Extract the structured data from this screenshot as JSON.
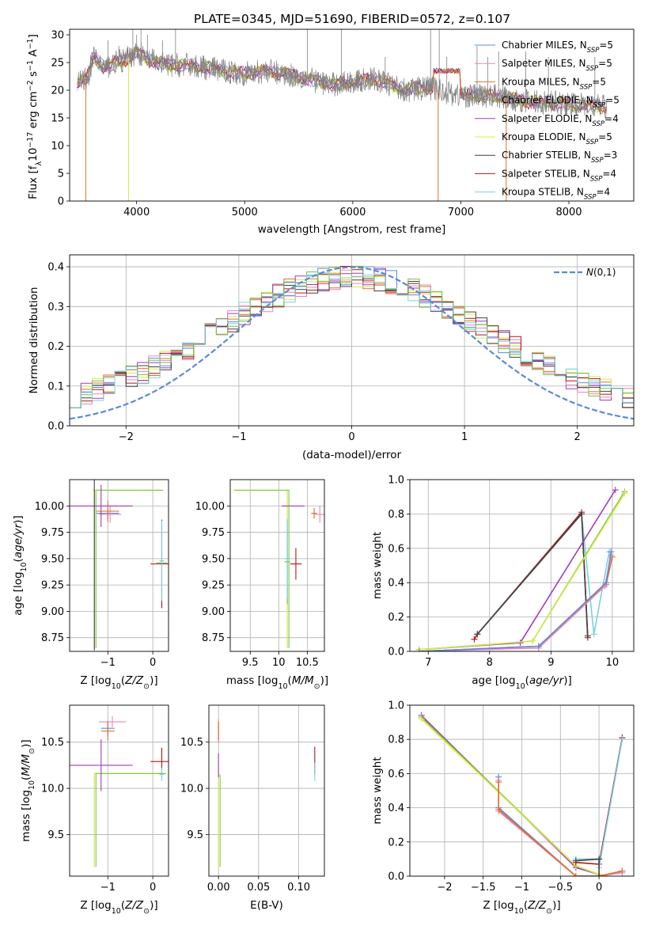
{
  "figure": {
    "title": "PLATE=0345, MJD=51690, FIBERID=0572, z=0.107"
  },
  "series": [
    {
      "key": "chab_miles",
      "legend": "Chabrier MILES, N",
      "sub": "SSP",
      "suffix": "=5",
      "color": "#5b8ad8"
    },
    {
      "key": "salp_miles",
      "legend": "Salpeter MILES, N",
      "sub": "SSP",
      "suffix": "=5",
      "color": "#e886b8"
    },
    {
      "key": "krou_miles",
      "legend": "Kroupa MILES, N",
      "sub": "SSP",
      "suffix": "=5",
      "color": "#e0722a"
    },
    {
      "key": "chab_elodie",
      "legend": "Chabrier ELODIE, N",
      "sub": "SSP",
      "suffix": "=5",
      "color": "#73c23f"
    },
    {
      "key": "salp_elodie",
      "legend": "Salpeter ELODIE, N",
      "sub": "SSP",
      "suffix": "=4",
      "color": "#a23ab8"
    },
    {
      "key": "krou_elodie",
      "legend": "Kroupa ELODIE, N",
      "sub": "SSP",
      "suffix": "=5",
      "color": "#d8e84a"
    },
    {
      "key": "chab_stelib",
      "legend": "Chabrier STELIB, N",
      "sub": "SSP",
      "suffix": "=3",
      "color": "#404040"
    },
    {
      "key": "salp_stelib",
      "legend": "Salpeter STELIB, N",
      "sub": "SSP",
      "suffix": "=4",
      "color": "#b01818"
    },
    {
      "key": "krou_stelib",
      "legend": "Kroupa STELIB, N",
      "sub": "SSP",
      "suffix": "=4",
      "color": "#7dd0de"
    }
  ],
  "chart_data": [
    {
      "id": "spectrum",
      "type": "line",
      "xlabel": "wavelength [Angstrom, rest frame]",
      "ylabel": "Flux [f_λ 10^-17 erg cm^-2 s^-1 A^-1]",
      "ylabel_parts": {
        "main": "Flux [f",
        "lam": "λ",
        "mid": "10",
        "e1": "−17",
        "mid2": " erg cm",
        "e2": "−2",
        "mid3": " s",
        "e3": "−1",
        "end": " A",
        "e4": "−1",
        "close": "]"
      },
      "xlim": [
        3380,
        8600
      ],
      "ylim": [
        0,
        31
      ],
      "xticks": [
        4000,
        5000,
        6000,
        7000,
        8000
      ],
      "yticks": [
        0,
        5,
        10,
        15,
        20,
        25,
        30
      ],
      "data_color": "#808080",
      "data_anchors": [
        [
          3450,
          21
        ],
        [
          3550,
          22.5
        ],
        [
          3600,
          26
        ],
        [
          3700,
          24
        ],
        [
          3800,
          25
        ],
        [
          3900,
          25.5
        ],
        [
          4000,
          27
        ],
        [
          4100,
          25.5
        ],
        [
          4300,
          24.5
        ],
        [
          4500,
          24.5
        ],
        [
          4800,
          23.5
        ],
        [
          5000,
          23
        ],
        [
          5200,
          23.5
        ],
        [
          5500,
          22.5
        ],
        [
          5800,
          21
        ],
        [
          6000,
          21.5
        ],
        [
          6200,
          22
        ],
        [
          6500,
          20
        ],
        [
          6700,
          20.5
        ],
        [
          7000,
          19
        ],
        [
          7300,
          19
        ],
        [
          7600,
          18
        ],
        [
          8000,
          17.5
        ],
        [
          8350,
          17
        ]
      ],
      "sky_lines": [
        [
          3735,
          29
        ],
        [
          3835,
          28
        ],
        [
          3965,
          31
        ],
        [
          4000,
          30
        ],
        [
          4040,
          31
        ],
        [
          4100,
          30
        ],
        [
          4240,
          29
        ],
        [
          4360,
          31
        ],
        [
          5580,
          31
        ],
        [
          5895,
          31
        ],
        [
          6300,
          26
        ],
        [
          6720,
          31
        ],
        [
          6800,
          31
        ],
        [
          6870,
          26
        ],
        [
          7150,
          28
        ],
        [
          7250,
          26
        ],
        [
          7350,
          27
        ],
        [
          7600,
          27
        ],
        [
          7810,
          26
        ],
        [
          8240,
          26
        ]
      ],
      "gap_lines": [
        [
          3530,
          0
        ],
        [
          3925,
          0
        ],
        [
          6790,
          0
        ],
        [
          7420,
          0
        ]
      ],
      "model_bump": [
        6740,
        6990,
        23.5
      ]
    },
    {
      "id": "residuals",
      "type": "histogram",
      "xlabel": "(data-model)/error",
      "ylabel": "Normed distribution",
      "xlim": [
        -2.5,
        2.5
      ],
      "ylim": [
        0,
        0.43
      ],
      "xticks": [
        -2,
        -1,
        0,
        1,
        2
      ],
      "yticks": [
        0,
        0.1,
        0.2,
        0.3,
        0.4
      ],
      "normal_label": "N(0,1)",
      "normal_color": "#5b8ad8",
      "bin_width": 0.1
    },
    {
      "id": "age_vs_Z",
      "type": "errorbar",
      "xlabel": "Z [log10(Z/Z⊙)]",
      "ylabel": "age  [log10(age/yr)]",
      "xlim": [
        -1.85,
        0.35
      ],
      "ylim": [
        8.62,
        10.25
      ],
      "xticks": [
        -1,
        0
      ],
      "yticks": [
        8.75,
        9.0,
        9.25,
        9.5,
        9.75,
        10.0
      ],
      "points": [
        {
          "s": "chab_miles",
          "x": -1.0,
          "y": 9.93,
          "dx": 0.25,
          "dy": 0.05
        },
        {
          "s": "salp_miles",
          "x": -0.95,
          "y": 9.92,
          "dx": 0.25,
          "dy": 0.08
        },
        {
          "s": "krou_miles",
          "x": -1.0,
          "y": 9.95,
          "dx": 0.25,
          "dy": 0.1
        },
        {
          "s": "chab_elodie",
          "x": 0.2,
          "y": 9.46,
          "dx": 0.12,
          "dy": 0.03
        },
        {
          "s": "salp_elodie",
          "x": -1.15,
          "y": 10.0,
          "dx": 0.7,
          "dy": 0.2
        },
        {
          "s": "krou_elodie",
          "x": -1.3,
          "y": 10.15,
          "dx": 0.05,
          "dy": 0.0
        },
        {
          "s": "chab_stelib",
          "x": -1.3,
          "y": 10.15,
          "dx": 0.0,
          "dy": 1.52
        },
        {
          "s": "salp_stelib",
          "x": 0.2,
          "y": 9.45,
          "dx": 0.25,
          "dy": 0.42
        },
        {
          "s": "krou_stelib",
          "x": 0.2,
          "y": 9.48,
          "dx": 0.05,
          "dy": 0.38
        }
      ],
      "green_line": {
        "x": -1.3,
        "y0": 8.65,
        "y1": 10.15,
        "x1": 0.2
      }
    },
    {
      "id": "age_vs_mass",
      "type": "errorbar",
      "xlabel": "mass [log10(M/M⊙)]",
      "ylabel": "",
      "xlim": [
        9.15,
        10.8
      ],
      "ylim": [
        8.62,
        10.25
      ],
      "xticks": [
        9.5,
        10.0,
        10.5
      ],
      "yticks": [
        8.75,
        9.0,
        9.25,
        9.5,
        9.75,
        10.0
      ],
      "points": [
        {
          "s": "chab_miles",
          "x": 10.62,
          "y": 9.93,
          "dx": 0.05,
          "dy": 0.05
        },
        {
          "s": "salp_miles",
          "x": 10.72,
          "y": 9.92,
          "dx": 0.08,
          "dy": 0.08
        },
        {
          "s": "krou_miles",
          "x": 10.62,
          "y": 9.93,
          "dx": 0.05,
          "dy": 0.05
        },
        {
          "s": "salp_elodie",
          "x": 10.25,
          "y": 10.0,
          "dx": 0.2,
          "dy": 0.0
        },
        {
          "s": "chab_elodie",
          "x": 10.15,
          "y": 9.47,
          "dx": 0.05,
          "dy": 0.4
        },
        {
          "s": "salp_stelib",
          "x": 10.3,
          "y": 9.45,
          "dx": 0.1,
          "dy": 0.15
        },
        {
          "s": "krou_stelib",
          "x": 10.15,
          "y": 9.5,
          "dx": 0.05,
          "dy": 0.38
        }
      ],
      "green_line": {
        "x": 10.15,
        "y0": 8.65,
        "y1": 10.15,
        "x1": 9.2
      }
    },
    {
      "id": "weight_vs_age",
      "type": "line",
      "xlabel": "age  [log10(age/yr)]",
      "ylabel": "mass weight",
      "xlim": [
        6.7,
        10.35
      ],
      "ylim": [
        0,
        1.0
      ],
      "xticks": [
        7,
        8,
        9,
        10
      ],
      "yticks": [
        0.0,
        0.2,
        0.4,
        0.6,
        0.8,
        1.0
      ],
      "lines": [
        {
          "s": "salp_stelib",
          "x": [
            7.75,
            7.8,
            9.5,
            9.6
          ],
          "y": [
            0.07,
            0.1,
            0.81,
            0.08
          ]
        },
        {
          "s": "krou_stelib",
          "x": [
            7.8,
            9.5,
            9.7,
            9.95
          ],
          "y": [
            0.1,
            0.8,
            0.1,
            0.58
          ]
        },
        {
          "s": "chab_stelib",
          "x": [
            7.8,
            9.5,
            9.6
          ],
          "y": [
            0.1,
            0.8,
            0.09
          ]
        },
        {
          "s": "salp_elodie",
          "x": [
            6.85,
            8.5,
            10.05
          ],
          "y": [
            0.01,
            0.05,
            0.94
          ]
        },
        {
          "s": "chab_elodie",
          "x": [
            6.85,
            8.7,
            10.2
          ],
          "y": [
            0.01,
            0.06,
            0.93
          ]
        },
        {
          "s": "krou_elodie",
          "x": [
            6.85,
            8.7,
            10.2
          ],
          "y": [
            0.01,
            0.06,
            0.92
          ]
        },
        {
          "s": "krou_miles",
          "x": [
            6.85,
            8.8,
            9.9,
            10.0
          ],
          "y": [
            0.0,
            0.03,
            0.39,
            0.55
          ]
        },
        {
          "s": "salp_miles",
          "x": [
            6.85,
            8.8,
            9.88,
            9.98
          ],
          "y": [
            0.0,
            0.02,
            0.38,
            0.56
          ]
        },
        {
          "s": "chab_miles",
          "x": [
            6.85,
            8.8,
            9.9,
            9.98
          ],
          "y": [
            0.0,
            0.03,
            0.4,
            0.58
          ]
        }
      ]
    },
    {
      "id": "mass_vs_Z",
      "type": "errorbar",
      "xlabel": "Z [log10(Z/Z⊙)]",
      "ylabel": "mass [log10(M/M⊙)]",
      "xlim": [
        -1.85,
        0.35
      ],
      "ylim": [
        9.05,
        10.9
      ],
      "xticks": [
        -1,
        0
      ],
      "yticks": [
        9.5,
        10.0,
        10.5
      ],
      "points": [
        {
          "s": "chab_miles",
          "x": -1.0,
          "y": 10.65,
          "dx": 0.15,
          "dy": 0.08
        },
        {
          "s": "salp_miles",
          "x": -0.9,
          "y": 10.72,
          "dx": 0.3,
          "dy": 0.06
        },
        {
          "s": "krou_miles",
          "x": -1.0,
          "y": 10.62,
          "dx": 0.15,
          "dy": 0.1
        },
        {
          "s": "salp_elodie",
          "x": -1.15,
          "y": 10.25,
          "dx": 0.7,
          "dy": 0.28
        },
        {
          "s": "chab_elodie",
          "x": 0.2,
          "y": 10.16,
          "dx": 0.1,
          "dy": 0.05
        },
        {
          "s": "salp_stelib",
          "x": 0.2,
          "y": 10.29,
          "dx": 0.25,
          "dy": 0.15
        },
        {
          "s": "krou_stelib",
          "x": 0.2,
          "y": 10.15,
          "dx": 0.05,
          "dy": 0.07
        }
      ],
      "green_line": {
        "x": -1.3,
        "y0": 9.15,
        "y1": 10.16,
        "x1": 0.2
      }
    },
    {
      "id": "mass_vs_EBV",
      "type": "errorbar",
      "xlabel": "E(B-V)",
      "ylabel": "",
      "xlim": [
        -0.012,
        0.132
      ],
      "ylim": [
        9.05,
        10.9
      ],
      "xticks": [
        0.0,
        0.05,
        0.1
      ],
      "xticklabels": [
        "0.00",
        "0.05",
        "0.10"
      ],
      "yticks": [
        9.5,
        10.0,
        10.5
      ],
      "points": [
        {
          "s": "chab_miles",
          "x": 0.0,
          "y": 10.62,
          "dx": 0,
          "dy": 0.1
        },
        {
          "s": "salp_miles",
          "x": 0.0,
          "y": 10.62,
          "dx": 0,
          "dy": 0.13
        },
        {
          "s": "krou_miles",
          "x": 0.0,
          "y": 10.62,
          "dx": 0,
          "dy": 0.1
        },
        {
          "s": "salp_elodie",
          "x": 0.0,
          "y": 10.25,
          "dx": 0,
          "dy": 0.13
        },
        {
          "s": "salp_stelib",
          "x": 0.12,
          "y": 10.3,
          "dx": 0,
          "dy": 0.15
        },
        {
          "s": "krou_stelib",
          "x": 0.12,
          "y": 10.18,
          "dx": 0,
          "dy": 0.1
        }
      ],
      "green_line": {
        "x": 0.0,
        "y0": 9.15,
        "y1": 10.15,
        "x1": 0.0
      }
    },
    {
      "id": "weight_vs_Z",
      "type": "line",
      "xlabel": "Z [log10(Z/Z⊙)]",
      "ylabel": "mass weight",
      "xlim": [
        -2.45,
        0.45
      ],
      "ylim": [
        0,
        1.0
      ],
      "xticks": [
        -2.0,
        -1.5,
        -1.0,
        -0.5,
        0.0
      ],
      "yticks": [
        0.0,
        0.2,
        0.4,
        0.6,
        0.8,
        1.0
      ],
      "lines": [
        {
          "s": "salp_elodie",
          "x": [
            -2.3,
            -0.3,
            0.0
          ],
          "y": [
            0.94,
            0.05,
            0.01
          ]
        },
        {
          "s": "chab_elodie",
          "x": [
            -2.3,
            -0.3,
            0.0
          ],
          "y": [
            0.93,
            0.06,
            0.01
          ]
        },
        {
          "s": "krou_elodie",
          "x": [
            -2.3,
            -0.3,
            0.0
          ],
          "y": [
            0.92,
            0.06,
            0.01
          ]
        },
        {
          "s": "chab_miles",
          "x": [
            -1.3,
            -1.3,
            -0.3,
            0.0,
            0.3
          ],
          "y": [
            0.58,
            0.4,
            0.0,
            0.0,
            0.03
          ]
        },
        {
          "s": "salp_miles",
          "x": [
            -1.3,
            -1.3,
            -0.3,
            0.0,
            0.3
          ],
          "y": [
            0.56,
            0.38,
            0.0,
            0.0,
            0.02
          ]
        },
        {
          "s": "krou_miles",
          "x": [
            -1.3,
            -1.3,
            -0.3,
            0.0,
            0.3
          ],
          "y": [
            0.55,
            0.39,
            0.0,
            0.0,
            0.03
          ]
        },
        {
          "s": "salp_stelib",
          "x": [
            -0.3,
            0.0,
            0.3
          ],
          "y": [
            0.08,
            0.07,
            0.81
          ]
        },
        {
          "s": "krou_stelib",
          "x": [
            -0.3,
            0.0,
            0.0,
            0.3
          ],
          "y": [
            0.1,
            0.1,
            0.05,
            0.8
          ]
        },
        {
          "s": "chab_stelib",
          "x": [
            -0.3,
            0.0,
            0.0
          ],
          "y": [
            0.09,
            0.1,
            0.0
          ]
        }
      ]
    }
  ]
}
